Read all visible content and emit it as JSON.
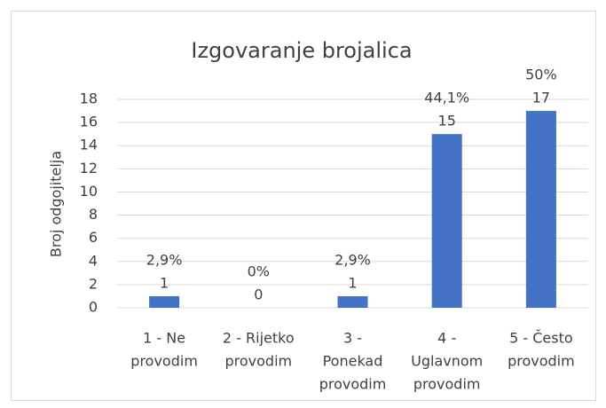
{
  "chart_data": {
    "type": "bar",
    "title": "Izgovaranje brojalica",
    "y_label": "Broj odgojitelja",
    "categories": [
      [
        "1 - Ne",
        "provodim"
      ],
      [
        "2 - Rijetko",
        "provodim"
      ],
      [
        "3 -",
        "Ponekad",
        "provodim"
      ],
      [
        "4 -",
        "Uglavnom",
        "provodim"
      ],
      [
        "5 - Često",
        "provodim"
      ]
    ],
    "values": [
      1,
      0,
      1,
      15,
      17
    ],
    "percent_labels": [
      "2,9%",
      "0%",
      "2,9%",
      "44,1%",
      "50%"
    ],
    "color": "#4472c4",
    "ylim": [
      0,
      18
    ],
    "yticks": [
      0,
      2,
      4,
      6,
      8,
      10,
      12,
      14,
      16,
      18
    ],
    "grid": true
  }
}
